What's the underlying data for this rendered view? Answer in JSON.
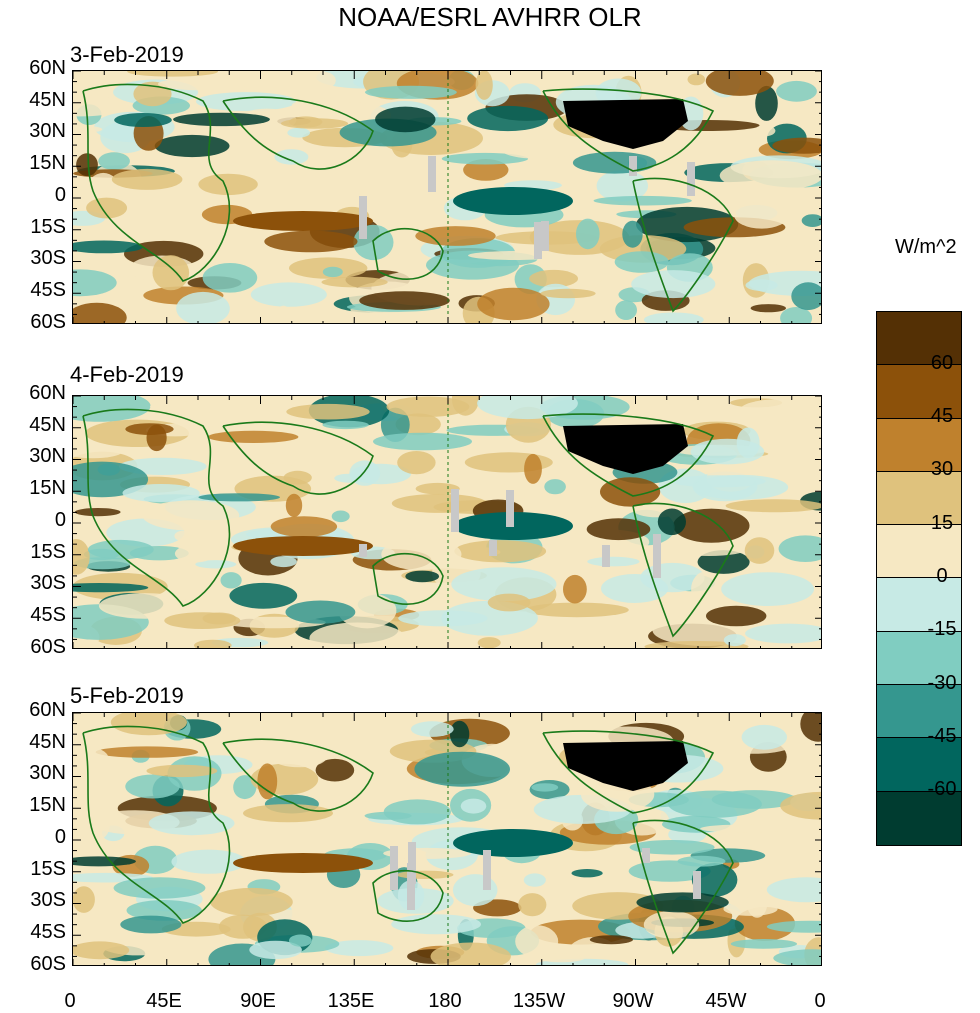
{
  "title": "NOAA/ESRL AVHRR OLR",
  "panels": [
    {
      "date": "3-Feb-2019"
    },
    {
      "date": "4-Feb-2019"
    },
    {
      "date": "5-Feb-2019"
    }
  ],
  "lat_labels": [
    "60N",
    "45N",
    "30N",
    "15N",
    "0",
    "15S",
    "30S",
    "45S",
    "60S"
  ],
  "lon_labels": [
    "0",
    "45E",
    "90E",
    "135E",
    "180",
    "135W",
    "90W",
    "45W",
    "0"
  ],
  "colorbar": {
    "units": "W/m^2",
    "labels": [
      "60",
      "45",
      "30",
      "15",
      "0",
      "-15",
      "-30",
      "-45",
      "-60"
    ],
    "colors": [
      "#543005",
      "#8c510a",
      "#bf812d",
      "#dfc27d",
      "#f6e8c3",
      "#c7eae5",
      "#80cdc1",
      "#35978f",
      "#01665e",
      "#003c30"
    ]
  },
  "palette": {
    "coast": "#1a7a1a",
    "land_us": "#000000",
    "missing": "#c8c8c8"
  }
}
